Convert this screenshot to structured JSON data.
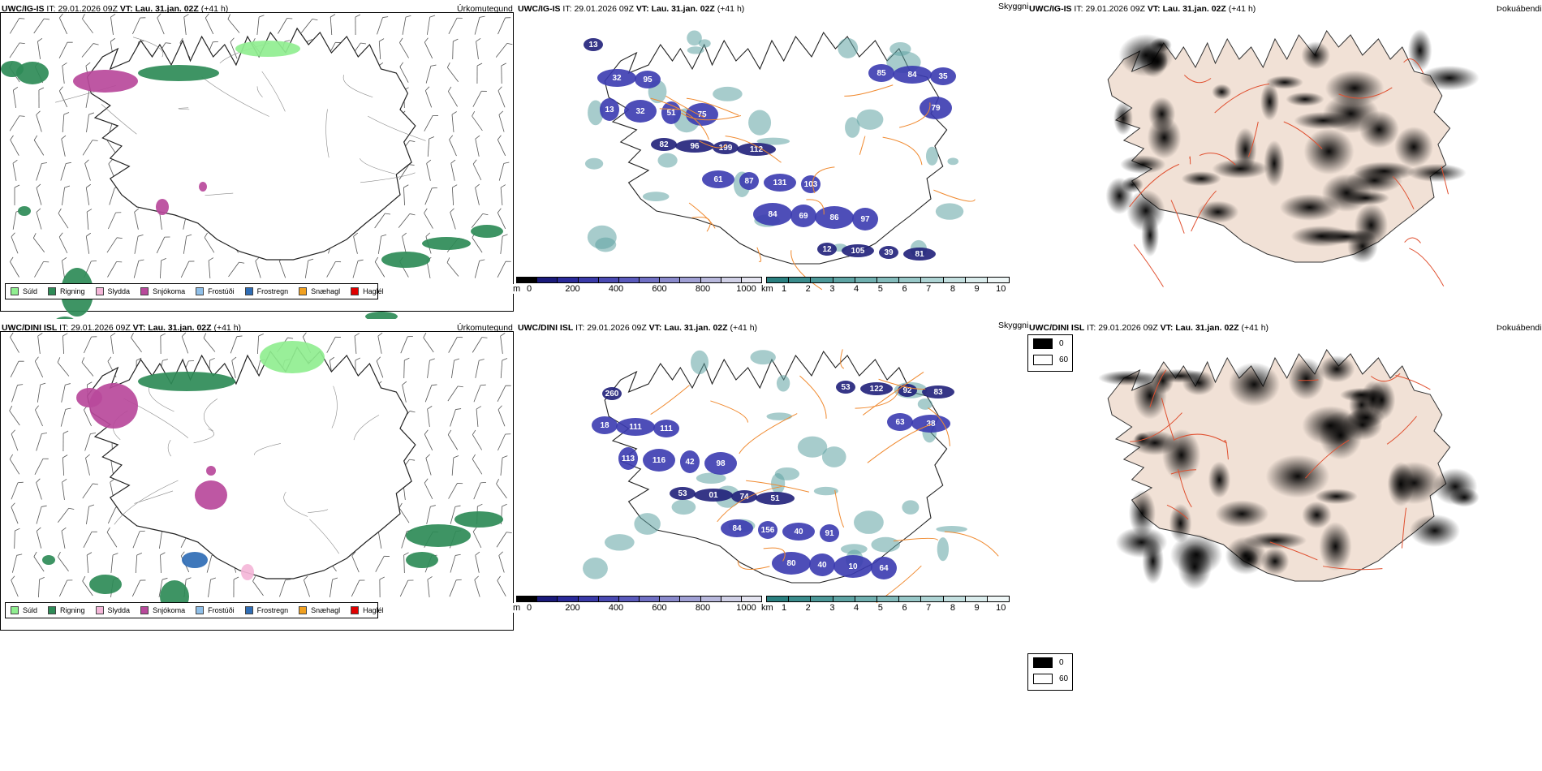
{
  "rows": [
    {
      "model": "UWC/IG-IS",
      "it_label": "IT:",
      "it_value": "29.01.2026 09Z",
      "vt_label": "VT: Lau. 31.jan. 02Z",
      "lead": "(+41 h)",
      "precip_type_title": "Úrkomutegund",
      "cloud_title": "Skyggni",
      "fog_title": "Þokuábendi",
      "cloud_labels": [
        "13",
        "95",
        "75",
        "112",
        "103",
        "97",
        "81",
        "32",
        "51",
        "199",
        "131",
        "86",
        "39",
        "35",
        "32",
        "96",
        "87",
        "69",
        "105",
        "84",
        "13",
        "82",
        "61",
        "84",
        "12",
        "85",
        "79"
      ]
    },
    {
      "model": "UWC/DINI ISL",
      "it_label": "IT:",
      "it_value": "29.01.2026 09Z",
      "vt_label": "VT: Lau. 31.jan. 02Z",
      "lead": "(+41 h)",
      "precip_type_title": "Úrkomutegund",
      "cloud_title": "Skyggni",
      "fog_title": "Þokuábendi",
      "cloud_labels": [
        "260",
        "111",
        "98",
        "51",
        "91",
        "64",
        "83",
        "111",
        "42",
        "74",
        "40",
        "10",
        "92",
        "18",
        "116",
        "01",
        "156",
        "40",
        "122",
        "38",
        "113",
        "53",
        "84",
        "80",
        "53",
        "63"
      ]
    }
  ],
  "precip_legend": [
    {
      "label": "Súld",
      "color": "#90ee90"
    },
    {
      "label": "Rigning",
      "color": "#2e8b57"
    },
    {
      "label": "Slydda",
      "color": "#f4b6d8"
    },
    {
      "label": "Snjókoma",
      "color": "#b8499b"
    },
    {
      "label": "Frostúði",
      "color": "#8fbfe8"
    },
    {
      "label": "Frostregn",
      "color": "#2f6db5"
    },
    {
      "label": "Snæhagl",
      "color": "#f0a020"
    },
    {
      "label": "Haglél",
      "color": "#e00000"
    }
  ],
  "height_bar": {
    "unit": "m",
    "ticks": [
      "0",
      "200",
      "400",
      "600",
      "800",
      "1000"
    ],
    "colors": [
      "#000000",
      "#1a1a7a",
      "#2a2a9a",
      "#3a3aa8",
      "#4a4ab2",
      "#5a5abc",
      "#7070c4",
      "#8a8acc",
      "#a0a0d4",
      "#b8b8dc",
      "#d0d0e6",
      "#e4e4f0"
    ]
  },
  "vis_bar": {
    "unit": "km",
    "ticks": [
      "1",
      "2",
      "3",
      "4",
      "5",
      "6",
      "7",
      "8",
      "9",
      "10"
    ],
    "colors": [
      "#2a8080",
      "#3a8c8c",
      "#4c9898",
      "#5ea4a4",
      "#70b0b0",
      "#84bcbc",
      "#98c8c8",
      "#aed4d4",
      "#c4e0e0",
      "#daecec",
      "#eef6f6"
    ]
  },
  "fog_legend": [
    {
      "label": "0",
      "color": "#000000"
    },
    {
      "label": "60",
      "color": "#ffffff"
    }
  ]
}
